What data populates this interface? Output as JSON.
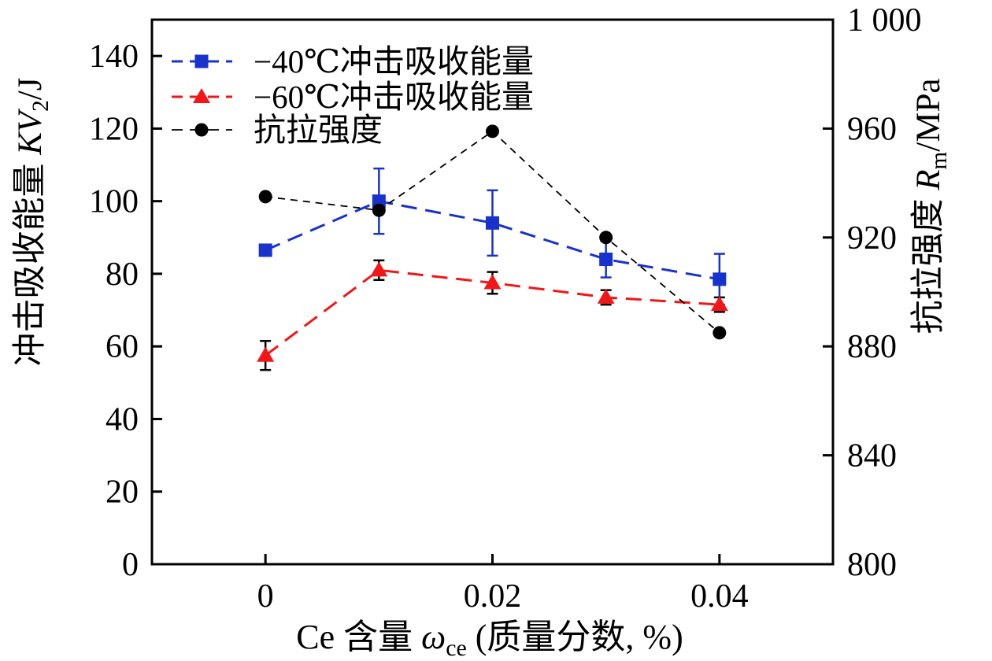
{
  "chart_data": {
    "type": "line",
    "title": "",
    "x": [
      0,
      0.01,
      0.02,
      0.03,
      0.04
    ],
    "series": [
      {
        "name": "−40℃冲击吸收能量",
        "axis": "left",
        "color": "#1733cc",
        "marker": "square",
        "values": [
          86.5,
          100,
          94,
          84,
          78.5
        ],
        "errors": [
          0,
          9,
          9,
          5,
          7
        ],
        "error_color": "#1733cc"
      },
      {
        "name": "−60℃冲击吸收能量",
        "axis": "left",
        "color": "#f21616",
        "marker": "triangle",
        "values": [
          57.5,
          81,
          77.5,
          73.5,
          71.5
        ],
        "errors": [
          4,
          2.7,
          3,
          2,
          2
        ],
        "error_color": "#000000"
      },
      {
        "name": "抗拉强度",
        "axis": "right",
        "color": "#000000",
        "marker": "circle",
        "values": [
          935,
          930,
          959,
          920,
          885
        ],
        "errors": [
          0,
          0,
          0,
          0,
          0
        ],
        "error_color": "#000000"
      }
    ],
    "x_axis": {
      "title_prefix": "Ce 含量 ",
      "title_symbol": "ω",
      "title_subscript": "ce",
      "title_suffix": " (质量分数, %)",
      "tick_values": [
        0,
        0.02,
        0.04
      ],
      "tick_labels": [
        "0",
        "0.02",
        "0.04"
      ],
      "range": [
        -0.01,
        0.05
      ]
    },
    "y_axis_left": {
      "title_prefix": "冲击吸收能量 ",
      "title_symbol": "KV",
      "title_subscript": "2",
      "title_suffix": "/J",
      "tick_values": [
        140,
        120,
        100,
        80,
        60,
        40,
        20,
        0
      ],
      "tick_labels": [
        "140",
        "120",
        "100",
        "80",
        "60",
        "40",
        "20",
        "0"
      ],
      "range": [
        0,
        150
      ]
    },
    "y_axis_right": {
      "title_prefix": "抗拉强度 ",
      "title_symbol": "R",
      "title_subscript": "m",
      "title_suffix": "/MPa",
      "tick_values": [
        1000,
        960,
        920,
        880,
        840,
        800
      ],
      "tick_labels": [
        "1 000",
        "960",
        "920",
        "880",
        "840",
        "800"
      ],
      "range": [
        800,
        1000
      ]
    },
    "legend": {
      "position": "top-left",
      "entries": [
        "−40℃冲击吸收能量",
        "−60℃冲击吸收能量",
        "抗拉强度"
      ]
    },
    "grid": false,
    "background": "#ffffff",
    "text_color": "#000000"
  }
}
